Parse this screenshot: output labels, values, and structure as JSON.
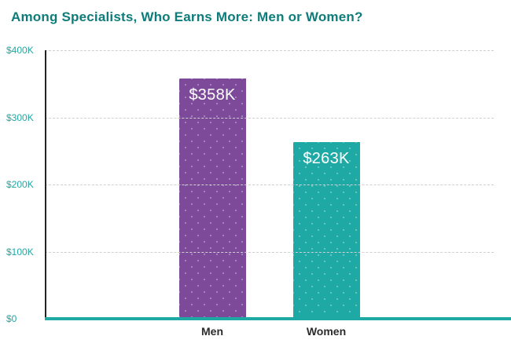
{
  "chart_data": {
    "type": "bar",
    "title": "Among Specialists, Who Earns More: Men or Women?",
    "categories": [
      "Men",
      "Women"
    ],
    "values": [
      358,
      263
    ],
    "value_labels": [
      "$358K",
      "$263K"
    ],
    "xlabel": "",
    "ylabel": "",
    "ylim": [
      0,
      400
    ],
    "yticks": [
      0,
      100,
      200,
      300,
      400
    ],
    "ytick_labels": [
      "$0",
      "$100K",
      "$200K",
      "$300K",
      "$400K"
    ],
    "grid": "horizontal-dashed",
    "legend": "none",
    "bar_colors": [
      "#7d4a9a",
      "#1fa9a5"
    ],
    "colors": {
      "title": "#0e7c7b",
      "tick_label": "#1fa9a5",
      "axis_bottom": "#1fa9a5",
      "axis_left": "#222222",
      "gridline": "#cfcfcf",
      "bar_label": "#ffffff"
    }
  }
}
